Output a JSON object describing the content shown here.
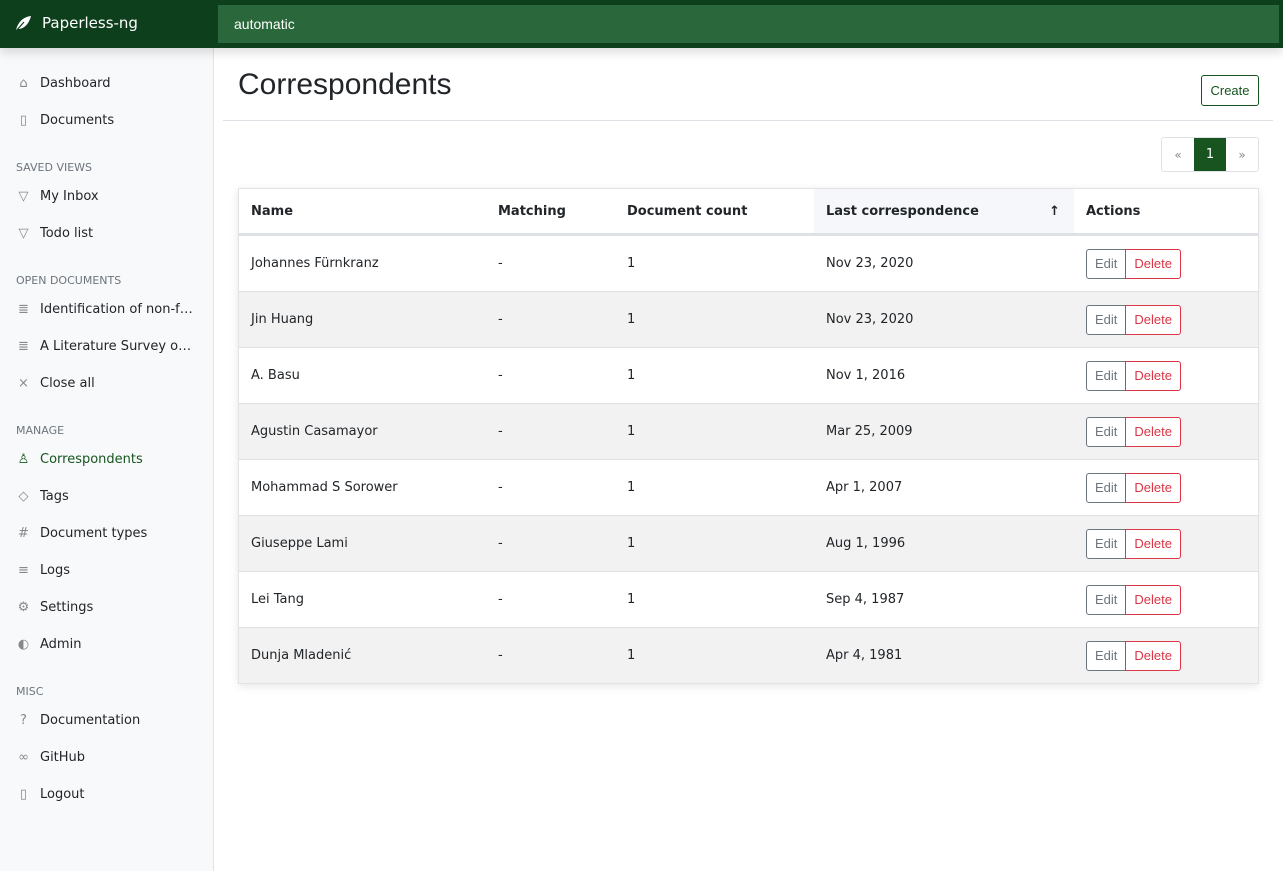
{
  "app": {
    "title": "Paperless-ng",
    "search_value": "automatic"
  },
  "sidebar": {
    "main": [
      {
        "label": "Dashboard",
        "icon": "house-icon"
      },
      {
        "label": "Documents",
        "icon": "files-icon"
      }
    ],
    "saved_views_header": "SAVED VIEWS",
    "saved_views": [
      {
        "label": "My Inbox",
        "icon": "funnel-icon"
      },
      {
        "label": "Todo list",
        "icon": "funnel-icon"
      }
    ],
    "open_documents_header": "OPEN DOCUMENTS",
    "open_documents": [
      {
        "label": "Identification of non-functional requirements",
        "icon": "file-text-icon"
      },
      {
        "label": "A Literature Survey on Algorithms",
        "icon": "file-text-icon"
      },
      {
        "label": "Close all",
        "icon": "x-icon"
      }
    ],
    "manage_header": "MANAGE",
    "manage": [
      {
        "label": "Correspondents",
        "icon": "person-icon",
        "active": true
      },
      {
        "label": "Tags",
        "icon": "tags-icon"
      },
      {
        "label": "Document types",
        "icon": "hash-icon"
      },
      {
        "label": "Logs",
        "icon": "text-left-icon"
      },
      {
        "label": "Settings",
        "icon": "gear-icon"
      },
      {
        "label": "Admin",
        "icon": "toggles-icon"
      }
    ],
    "misc_header": "MISC",
    "misc": [
      {
        "label": "Documentation",
        "icon": "question-circle-icon"
      },
      {
        "label": "GitHub",
        "icon": "link-icon"
      },
      {
        "label": "Logout",
        "icon": "door-icon"
      }
    ]
  },
  "page": {
    "title": "Correspondents",
    "create_label": "Create"
  },
  "pagination": {
    "prev": "«",
    "current": "1",
    "next": "»"
  },
  "table": {
    "columns": [
      "Name",
      "Matching",
      "Document count",
      "Last correspondence",
      "Actions"
    ],
    "sort_indicator": "↑",
    "edit_label": "Edit",
    "delete_label": "Delete",
    "rows": [
      [
        "Johannes Fürnkranz",
        "-",
        "1",
        "Nov 23, 2020"
      ],
      [
        "Jin Huang",
        "-",
        "1",
        "Nov 23, 2020"
      ],
      [
        "A. Basu",
        "-",
        "1",
        "Nov 1, 2016"
      ],
      [
        "Agustin Casamayor",
        "-",
        "1",
        "Mar 25, 2009"
      ],
      [
        "Mohammad S Sorower",
        "-",
        "1",
        "Apr 1, 2007"
      ],
      [
        "Giuseppe Lami",
        "-",
        "1",
        "Aug 1, 1996"
      ],
      [
        "Lei Tang",
        "-",
        "1",
        "Sep 4, 1987"
      ],
      [
        "Dunja Mladenić",
        "-",
        "1",
        "Apr 4, 1981"
      ]
    ]
  }
}
